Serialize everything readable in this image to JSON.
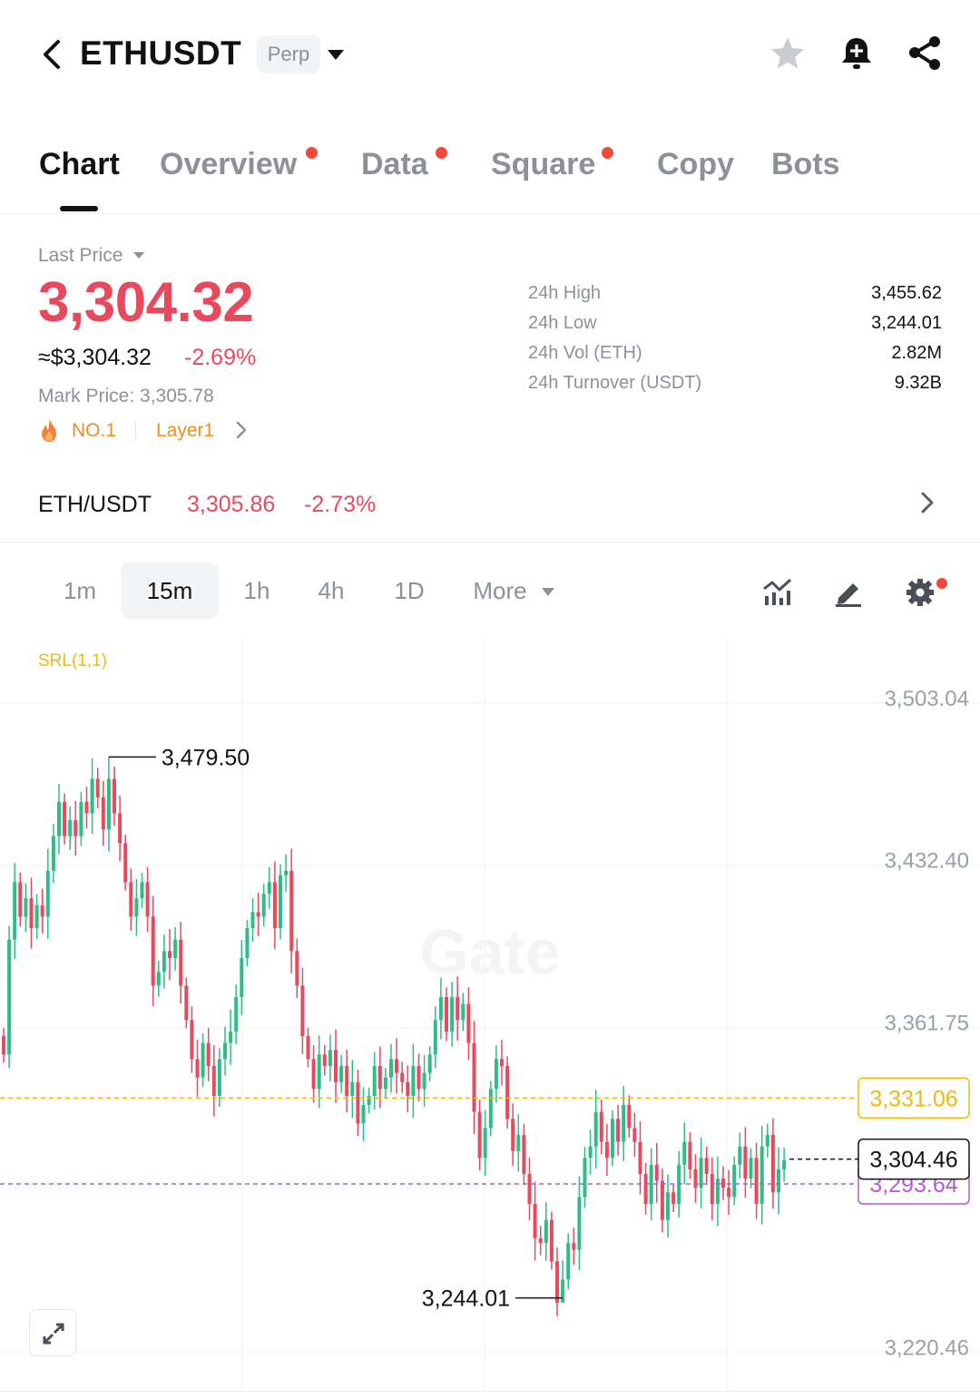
{
  "header": {
    "symbol": "ETHUSDT",
    "contract_type": "Perp"
  },
  "tabs": [
    {
      "label": "Chart",
      "active": true,
      "dot": false
    },
    {
      "label": "Overview",
      "active": false,
      "dot": true
    },
    {
      "label": "Data",
      "active": false,
      "dot": true
    },
    {
      "label": "Square",
      "active": false,
      "dot": true
    },
    {
      "label": "Copy",
      "active": false,
      "dot": false
    },
    {
      "label": "Bots",
      "active": false,
      "dot": false
    }
  ],
  "price": {
    "last_price_label": "Last Price",
    "last_price": "3,304.32",
    "usd_price": "≈$3,304.32",
    "change_pct": "-2.69%",
    "mark_price": "Mark Price: 3,305.78",
    "rank": "NO.1",
    "category": "Layer1"
  },
  "stats": [
    {
      "label": "24h High",
      "value": "3,455.62"
    },
    {
      "label": "24h Low",
      "value": "3,244.01"
    },
    {
      "label": "24h Vol (ETH)",
      "value": "2.82M"
    },
    {
      "label": "24h Turnover (USDT)",
      "value": "9.32B"
    }
  ],
  "spot": {
    "pair": "ETH/USDT",
    "price": "3,305.86",
    "change_pct": "-2.73%"
  },
  "intervals": {
    "items": [
      "1m",
      "15m",
      "1h",
      "4h",
      "1D"
    ],
    "selected": "15m",
    "more_label": "More"
  },
  "toolbar_icons": [
    "indicators-icon",
    "draw-icon",
    "settings-icon"
  ],
  "chart_data": {
    "type": "candlestick",
    "indicator_label": "SRL(1,1)",
    "watermark": "Gate",
    "y_ticks": [
      "3,503.04",
      "3,432.40",
      "3,361.75",
      "3,220.46"
    ],
    "y_range": [
      3203.2,
      3531.0
    ],
    "high_annotation": "3,479.50",
    "low_annotation": "3,244.01",
    "lines": [
      {
        "name": "SRL",
        "value": 3331.06,
        "label": "3,331.06",
        "color": "#f0b90b"
      },
      {
        "name": "last",
        "value": 3304.46,
        "label": "3,304.46",
        "color": "#121212"
      },
      {
        "name": "SRL2",
        "value": 3293.64,
        "label": "3,293.64",
        "color": "#b45ad2"
      }
    ],
    "colors": {
      "up": "#2ebd85",
      "down": "#e8495d"
    },
    "closes": [
      3350,
      3400,
      3425,
      3410,
      3418,
      3405,
      3415,
      3410,
      3430,
      3445,
      3460,
      3445,
      3452,
      3445,
      3460,
      3455,
      3470,
      3462,
      3448,
      3470,
      3455,
      3442,
      3425,
      3410,
      3418,
      3425,
      3410,
      3380,
      3386,
      3395,
      3392,
      3400,
      3380,
      3365,
      3348,
      3340,
      3355,
      3345,
      3332,
      3348,
      3355,
      3360,
      3375,
      3392,
      3405,
      3412,
      3410,
      3420,
      3425,
      3405,
      3428,
      3430,
      3395,
      3380,
      3358,
      3348,
      3335,
      3350,
      3345,
      3352,
      3338,
      3345,
      3332,
      3338,
      3320,
      3328,
      3332,
      3345,
      3335,
      3340,
      3348,
      3342,
      3338,
      3332,
      3345,
      3335,
      3342,
      3350,
      3365,
      3375,
      3360,
      3375,
      3365,
      3372,
      3355,
      3325,
      3305,
      3318,
      3335,
      3348,
      3345,
      3322,
      3308,
      3315,
      3298,
      3285,
      3270,
      3268,
      3278,
      3260,
      3242,
      3252,
      3268,
      3265,
      3288,
      3305,
      3310,
      3325,
      3312,
      3305,
      3322,
      3312,
      3328,
      3318,
      3312,
      3298,
      3285,
      3302,
      3295,
      3278,
      3290,
      3285,
      3302,
      3312,
      3300,
      3292,
      3305,
      3298,
      3285,
      3296,
      3292,
      3288,
      3302,
      3310,
      3296,
      3305,
      3285,
      3310,
      3315,
      3290,
      3300,
      3304
    ]
  }
}
